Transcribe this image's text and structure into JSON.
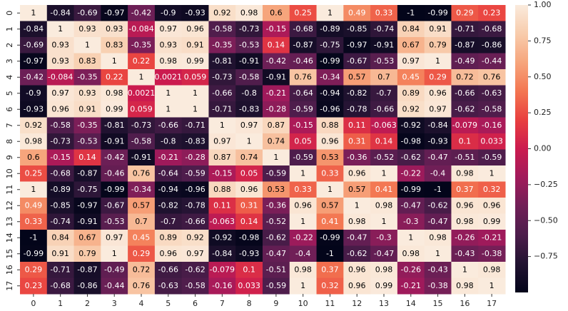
{
  "chart_data": {
    "type": "heatmap",
    "x_categories": [
      "0",
      "1",
      "2",
      "3",
      "4",
      "5",
      "6",
      "7",
      "8",
      "9",
      "10",
      "11",
      "12",
      "13",
      "14",
      "15",
      "16",
      "17"
    ],
    "y_categories": [
      "0",
      "1",
      "2",
      "3",
      "4",
      "5",
      "6",
      "7",
      "8",
      "9",
      "10",
      "11",
      "12",
      "13",
      "14",
      "15",
      "16",
      "17"
    ],
    "values": [
      [
        1,
        -0.84,
        -0.69,
        -0.97,
        -0.42,
        -0.9,
        -0.93,
        0.92,
        0.98,
        0.6,
        0.25,
        1,
        0.49,
        0.33,
        -1,
        -0.99,
        0.29,
        0.23
      ],
      [
        -0.84,
        1,
        0.93,
        0.93,
        -0.084,
        0.97,
        0.96,
        -0.58,
        -0.73,
        -0.15,
        -0.68,
        -0.89,
        -0.85,
        -0.74,
        0.84,
        0.91,
        -0.71,
        -0.68
      ],
      [
        -0.69,
        0.93,
        1,
        0.83,
        -0.35,
        0.93,
        0.91,
        -0.35,
        -0.53,
        0.14,
        -0.87,
        -0.75,
        -0.97,
        -0.91,
        0.67,
        0.79,
        -0.87,
        -0.86
      ],
      [
        -0.97,
        0.93,
        0.83,
        1,
        0.22,
        0.98,
        0.99,
        -0.81,
        -0.91,
        -0.42,
        -0.46,
        -0.99,
        -0.67,
        -0.53,
        0.97,
        1,
        -0.49,
        -0.44
      ],
      [
        -0.42,
        -0.084,
        -0.35,
        0.22,
        1,
        0.0021,
        0.059,
        -0.73,
        -0.58,
        -0.91,
        0.76,
        -0.34,
        0.57,
        0.7,
        0.45,
        0.29,
        0.72,
        0.76
      ],
      [
        -0.9,
        0.97,
        0.93,
        0.98,
        0.0021,
        1,
        1,
        -0.66,
        -0.8,
        -0.21,
        -0.64,
        -0.94,
        -0.82,
        -0.7,
        0.89,
        0.96,
        -0.66,
        -0.63
      ],
      [
        -0.93,
        0.96,
        0.91,
        0.99,
        0.059,
        1,
        1,
        -0.71,
        -0.83,
        -0.28,
        -0.59,
        -0.96,
        -0.78,
        -0.66,
        0.92,
        0.97,
        -0.62,
        -0.58
      ],
      [
        0.92,
        -0.58,
        -0.35,
        -0.81,
        -0.73,
        -0.66,
        -0.71,
        1,
        0.97,
        0.87,
        -0.15,
        0.88,
        0.11,
        -0.063,
        -0.92,
        -0.84,
        -0.079,
        -0.16
      ],
      [
        0.98,
        -0.73,
        -0.53,
        -0.91,
        -0.58,
        -0.8,
        -0.83,
        0.97,
        1,
        0.74,
        0.05,
        0.96,
        0.31,
        0.14,
        -0.98,
        -0.93,
        0.1,
        0.033
      ],
      [
        0.6,
        -0.15,
        0.14,
        -0.42,
        -0.91,
        -0.21,
        -0.28,
        0.87,
        0.74,
        1,
        -0.59,
        0.53,
        -0.36,
        -0.52,
        -0.62,
        -0.47,
        -0.51,
        -0.59
      ],
      [
        0.25,
        -0.68,
        -0.87,
        -0.46,
        0.76,
        -0.64,
        -0.59,
        -0.15,
        0.05,
        -0.59,
        1,
        0.33,
        0.96,
        1,
        -0.22,
        -0.4,
        0.98,
        1
      ],
      [
        1,
        -0.89,
        -0.75,
        -0.99,
        -0.34,
        -0.94,
        -0.96,
        0.88,
        0.96,
        0.53,
        0.33,
        1,
        0.57,
        0.41,
        -0.99,
        -1,
        0.37,
        0.32
      ],
      [
        0.49,
        -0.85,
        -0.97,
        -0.67,
        0.57,
        -0.82,
        -0.78,
        0.11,
        0.31,
        -0.36,
        0.96,
        0.57,
        1,
        0.98,
        -0.47,
        -0.62,
        0.96,
        0.96
      ],
      [
        0.33,
        -0.74,
        -0.91,
        -0.53,
        0.7,
        -0.7,
        -0.66,
        -0.063,
        0.14,
        -0.52,
        1,
        0.41,
        0.98,
        1,
        -0.3,
        -0.47,
        0.98,
        0.99
      ],
      [
        -1,
        0.84,
        0.67,
        0.97,
        0.45,
        0.89,
        0.92,
        -0.92,
        -0.98,
        -0.62,
        -0.22,
        -0.99,
        -0.47,
        -0.3,
        1,
        0.98,
        -0.26,
        -0.21
      ],
      [
        -0.99,
        0.91,
        0.79,
        1,
        0.29,
        0.96,
        0.97,
        -0.84,
        -0.93,
        -0.47,
        -0.4,
        -1,
        -0.62,
        -0.47,
        0.98,
        1,
        -0.43,
        -0.38
      ],
      [
        0.29,
        -0.71,
        -0.87,
        -0.49,
        0.72,
        -0.66,
        -0.62,
        -0.079,
        0.1,
        -0.51,
        0.98,
        0.37,
        0.96,
        0.98,
        -0.26,
        -0.43,
        1,
        0.98
      ],
      [
        0.23,
        -0.68,
        -0.86,
        -0.44,
        0.76,
        -0.63,
        -0.58,
        -0.16,
        0.033,
        -0.59,
        1,
        0.32,
        0.96,
        0.99,
        -0.21,
        -0.38,
        0.98,
        1
      ]
    ],
    "colormap": "rocket",
    "zlim": [
      -1,
      1
    ],
    "zticks": [
      {
        "value": 1,
        "label": "1.00"
      },
      {
        "value": 0.75,
        "label": "0.75"
      },
      {
        "value": 0.5,
        "label": "0.50"
      },
      {
        "value": 0.25,
        "label": "0.25"
      },
      {
        "value": 0,
        "label": "0.00"
      },
      {
        "value": -0.25,
        "label": "−0.25"
      },
      {
        "value": -0.5,
        "label": "−0.50"
      },
      {
        "value": -0.75,
        "label": "−0.75"
      }
    ]
  }
}
